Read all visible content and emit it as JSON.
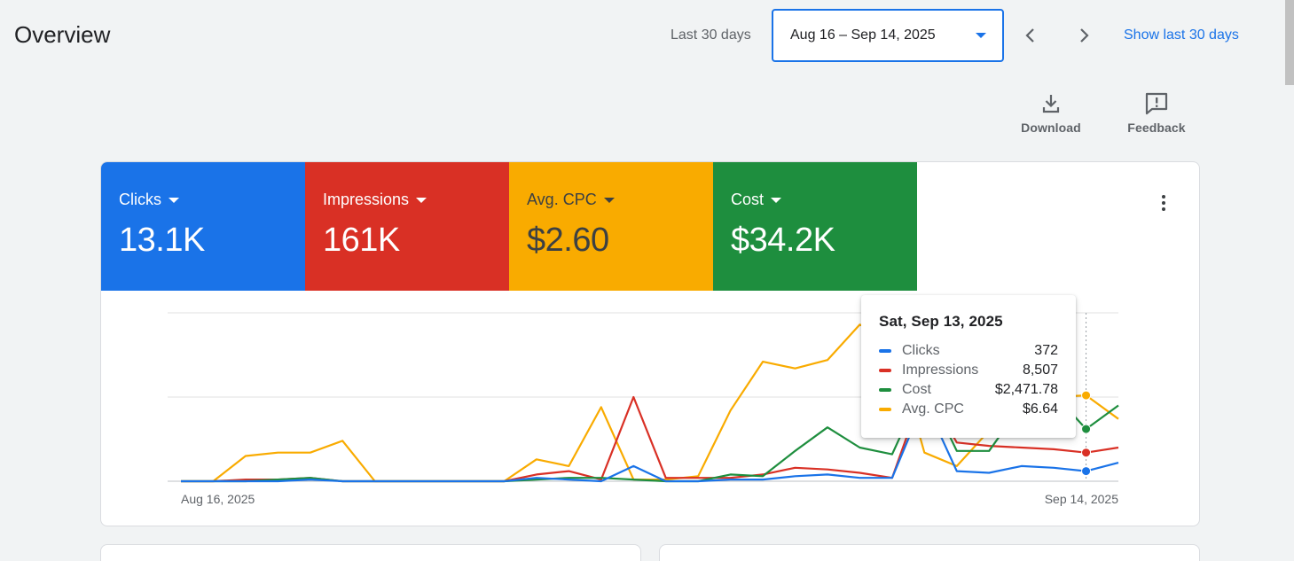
{
  "header": {
    "title": "Overview",
    "range_label": "Last 30 days",
    "date_range": "Aug 16 – Sep 14, 2025",
    "show_last_link": "Show last 30 days"
  },
  "toolbar": {
    "download_label": "Download",
    "feedback_label": "Feedback"
  },
  "metrics": [
    {
      "label": "Clicks",
      "value": "13.1K",
      "color": "#1a73e8"
    },
    {
      "label": "Impressions",
      "value": "161K",
      "color": "#d93025"
    },
    {
      "label": "Avg. CPC",
      "value": "$2.60",
      "color": "#f9ab00"
    },
    {
      "label": "Cost",
      "value": "$34.2K",
      "color": "#1e8e3e"
    }
  ],
  "tooltip": {
    "date": "Sat, Sep 13, 2025",
    "rows": [
      {
        "name": "Clicks",
        "value": "372",
        "color": "#1a73e8"
      },
      {
        "name": "Impressions",
        "value": "8,507",
        "color": "#d93025"
      },
      {
        "name": "Cost",
        "value": "$2,471.78",
        "color": "#1e8e3e"
      },
      {
        "name": "Avg. CPC",
        "value": "$6.64",
        "color": "#f9ab00"
      }
    ]
  },
  "chart_data": {
    "type": "line",
    "x_start_label": "Aug 16, 2025",
    "x_end_label": "Sep 14, 2025",
    "x": [
      "Aug 16",
      "Aug 17",
      "Aug 18",
      "Aug 19",
      "Aug 20",
      "Aug 21",
      "Aug 22",
      "Aug 23",
      "Aug 24",
      "Aug 25",
      "Aug 26",
      "Aug 27",
      "Aug 28",
      "Aug 29",
      "Aug 30",
      "Aug 31",
      "Sep 1",
      "Sep 2",
      "Sep 3",
      "Sep 4",
      "Sep 5",
      "Sep 6",
      "Sep 7",
      "Sep 8",
      "Sep 9",
      "Sep 10",
      "Sep 11",
      "Sep 12",
      "Sep 13",
      "Sep 14"
    ],
    "ylim": [
      0,
      1
    ],
    "grid": true,
    "highlight_x": "Sep 13",
    "series": [
      {
        "name": "Avg. CPC",
        "color": "#f9ab00",
        "values": [
          0.0,
          0.0,
          0.15,
          0.17,
          0.17,
          0.24,
          0.0,
          0.0,
          0.0,
          0.0,
          0.0,
          0.13,
          0.09,
          0.44,
          0.01,
          0.01,
          0.03,
          0.42,
          0.71,
          0.67,
          0.72,
          0.93,
          0.85,
          0.17,
          0.09,
          0.3,
          0.48,
          0.5,
          0.51,
          0.37
        ]
      },
      {
        "name": "Impressions",
        "color": "#d93025",
        "values": [
          0.0,
          0.0,
          0.01,
          0.01,
          0.02,
          0.0,
          0.0,
          0.0,
          0.0,
          0.0,
          0.0,
          0.04,
          0.06,
          0.01,
          0.5,
          0.02,
          0.02,
          0.02,
          0.04,
          0.08,
          0.07,
          0.05,
          0.02,
          0.56,
          0.23,
          0.21,
          0.2,
          0.19,
          0.17,
          0.2
        ]
      },
      {
        "name": "Cost",
        "color": "#1e8e3e",
        "values": [
          0.0,
          0.0,
          0.0,
          0.01,
          0.02,
          0.0,
          0.0,
          0.0,
          0.0,
          0.0,
          0.0,
          0.01,
          0.02,
          0.02,
          0.01,
          0.0,
          0.0,
          0.04,
          0.03,
          0.18,
          0.32,
          0.2,
          0.16,
          0.58,
          0.18,
          0.18,
          0.45,
          0.52,
          0.31,
          0.45
        ]
      },
      {
        "name": "Clicks",
        "color": "#1a73e8",
        "values": [
          0.0,
          0.0,
          0.0,
          0.0,
          0.01,
          0.0,
          0.0,
          0.0,
          0.0,
          0.0,
          0.0,
          0.02,
          0.01,
          0.0,
          0.09,
          0.0,
          0.0,
          0.01,
          0.01,
          0.03,
          0.04,
          0.02,
          0.02,
          0.48,
          0.06,
          0.05,
          0.09,
          0.08,
          0.06,
          0.11
        ]
      }
    ]
  }
}
